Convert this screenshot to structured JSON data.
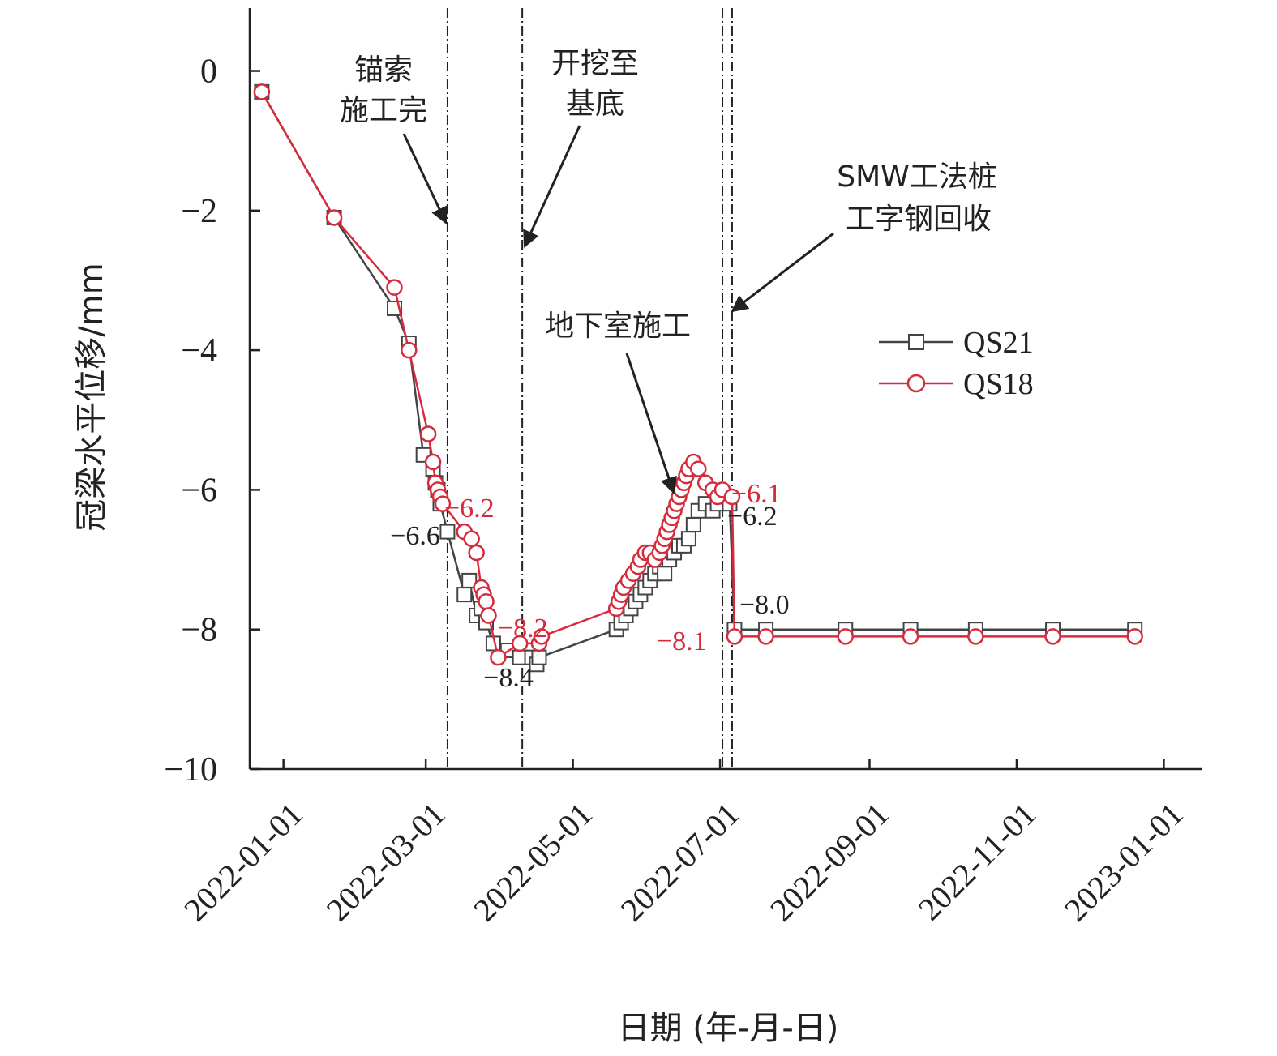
{
  "chart_data": {
    "type": "line",
    "xlabel": "日期 (年-月-日)",
    "ylabel": "冠梁水平位移/mm",
    "x_ticks": [
      "2022-01-01",
      "2022-03-01",
      "2022-05-01",
      "2022-07-01",
      "2022-09-01",
      "2022-11-01",
      "2023-01-01"
    ],
    "y_ticks": [
      "0",
      "−2",
      "−4",
      "−6",
      "−8",
      "−10"
    ],
    "xlim": [
      "2021-12-18",
      "2023-01-17"
    ],
    "ylim": [
      -10,
      0.9
    ],
    "legend_position": "right",
    "series": [
      {
        "name": "QS21",
        "color": "#444444",
        "marker": "square",
        "points": [
          [
            "2021-12-23",
            -0.3
          ],
          [
            "2022-01-22",
            -2.1
          ],
          [
            "2022-02-16",
            -3.4
          ],
          [
            "2022-02-22",
            -3.9
          ],
          [
            "2022-02-28",
            -5.5
          ],
          [
            "2022-03-04",
            -5.7
          ],
          [
            "2022-03-05",
            -5.9
          ],
          [
            "2022-03-06",
            -6.0
          ],
          [
            "2022-03-07",
            -6.2
          ],
          [
            "2022-03-10",
            -6.6
          ],
          [
            "2022-03-17",
            -7.5
          ],
          [
            "2022-03-19",
            -7.3
          ],
          [
            "2022-03-22",
            -7.8
          ],
          [
            "2022-03-24",
            -7.7
          ],
          [
            "2022-03-26",
            -7.9
          ],
          [
            "2022-03-29",
            -8.2
          ],
          [
            "2022-04-04",
            -8.3
          ],
          [
            "2022-04-09",
            -8.4
          ],
          [
            "2022-04-14",
            -8.4
          ],
          [
            "2022-04-16",
            -8.5
          ],
          [
            "2022-04-17",
            -8.4
          ],
          [
            "2022-05-19",
            -8.0
          ],
          [
            "2022-05-21",
            -7.9
          ],
          [
            "2022-05-23",
            -7.8
          ],
          [
            "2022-05-25",
            -7.7
          ],
          [
            "2022-05-27",
            -7.6
          ],
          [
            "2022-05-29",
            -7.5
          ],
          [
            "2022-05-31",
            -7.4
          ],
          [
            "2022-06-02",
            -7.3
          ],
          [
            "2022-06-04",
            -7.2
          ],
          [
            "2022-06-06",
            -7.1
          ],
          [
            "2022-06-08",
            -7.2
          ],
          [
            "2022-06-10",
            -7.0
          ],
          [
            "2022-06-12",
            -6.9
          ],
          [
            "2022-06-14",
            -6.8
          ],
          [
            "2022-06-16",
            -6.8
          ],
          [
            "2022-06-18",
            -6.7
          ],
          [
            "2022-06-20",
            -6.5
          ],
          [
            "2022-06-22",
            -6.3
          ],
          [
            "2022-06-25",
            -6.2
          ],
          [
            "2022-06-28",
            -6.3
          ],
          [
            "2022-06-30",
            -6.2
          ],
          [
            "2022-07-02",
            -6.1
          ],
          [
            "2022-07-05",
            -6.2
          ],
          [
            "2022-07-07",
            -8.0
          ],
          [
            "2022-07-20",
            -8.0
          ],
          [
            "2022-08-22",
            -8.0
          ],
          [
            "2022-09-18",
            -8.0
          ],
          [
            "2022-10-15",
            -8.0
          ],
          [
            "2022-11-16",
            -8.0
          ],
          [
            "2022-12-20",
            -8.0
          ]
        ]
      },
      {
        "name": "QS18",
        "color": "#d62b3c",
        "marker": "circle",
        "points": [
          [
            "2021-12-23",
            -0.3
          ],
          [
            "2022-01-22",
            -2.1
          ],
          [
            "2022-02-16",
            -3.1
          ],
          [
            "2022-02-22",
            -4.0
          ],
          [
            "2022-03-02",
            -5.2
          ],
          [
            "2022-03-04",
            -5.6
          ],
          [
            "2022-03-05",
            -5.9
          ],
          [
            "2022-03-06",
            -6.0
          ],
          [
            "2022-03-07",
            -6.1
          ],
          [
            "2022-03-08",
            -6.2
          ],
          [
            "2022-03-17",
            -6.6
          ],
          [
            "2022-03-20",
            -6.7
          ],
          [
            "2022-03-22",
            -6.9
          ],
          [
            "2022-03-24",
            -7.4
          ],
          [
            "2022-03-25",
            -7.5
          ],
          [
            "2022-03-26",
            -7.6
          ],
          [
            "2022-03-27",
            -7.8
          ],
          [
            "2022-03-31",
            -8.4
          ],
          [
            "2022-04-09",
            -8.2
          ],
          [
            "2022-04-17",
            -8.2
          ],
          [
            "2022-04-18",
            -8.1
          ],
          [
            "2022-05-19",
            -7.7
          ],
          [
            "2022-05-20",
            -7.6
          ],
          [
            "2022-05-21",
            -7.5
          ],
          [
            "2022-05-22",
            -7.4
          ],
          [
            "2022-05-24",
            -7.3
          ],
          [
            "2022-05-26",
            -7.2
          ],
          [
            "2022-05-28",
            -7.1
          ],
          [
            "2022-05-29",
            -7.0
          ],
          [
            "2022-05-31",
            -6.9
          ],
          [
            "2022-06-02",
            -6.9
          ],
          [
            "2022-06-04",
            -7.0
          ],
          [
            "2022-06-06",
            -6.9
          ],
          [
            "2022-06-07",
            -6.8
          ],
          [
            "2022-06-08",
            -6.7
          ],
          [
            "2022-06-09",
            -6.6
          ],
          [
            "2022-06-10",
            -6.5
          ],
          [
            "2022-06-11",
            -6.4
          ],
          [
            "2022-06-12",
            -6.3
          ],
          [
            "2022-06-13",
            -6.2
          ],
          [
            "2022-06-14",
            -6.1
          ],
          [
            "2022-06-15",
            -6.0
          ],
          [
            "2022-06-16",
            -5.9
          ],
          [
            "2022-06-17",
            -5.8
          ],
          [
            "2022-06-18",
            -5.7
          ],
          [
            "2022-06-20",
            -5.6
          ],
          [
            "2022-06-22",
            -5.7
          ],
          [
            "2022-06-25",
            -5.9
          ],
          [
            "2022-06-28",
            -6.0
          ],
          [
            "2022-06-30",
            -6.1
          ],
          [
            "2022-07-02",
            -6.0
          ],
          [
            "2022-07-06",
            -6.1
          ],
          [
            "2022-07-07",
            -8.1
          ],
          [
            "2022-07-20",
            -8.1
          ],
          [
            "2022-08-22",
            -8.1
          ],
          [
            "2022-09-18",
            -8.1
          ],
          [
            "2022-10-15",
            -8.1
          ],
          [
            "2022-11-16",
            -8.1
          ],
          [
            "2022-12-20",
            -8.1
          ]
        ]
      }
    ],
    "event_lines": [
      {
        "date": "2022-03-10",
        "label": [
          "锚索",
          "施工完"
        ]
      },
      {
        "date": "2022-04-10",
        "label": [
          "开挖至",
          "基底"
        ]
      },
      {
        "date": "2022-07-02",
        "label": []
      },
      {
        "date": "2022-07-06",
        "label": [
          "SMW工法桩",
          "工字钢回收"
        ]
      }
    ],
    "annotations": [
      {
        "text": "地下室施工",
        "color": "#222222"
      },
      {
        "text": "−6.6",
        "series": "QS21",
        "color": "#222222"
      },
      {
        "text": "−8.4",
        "series": "QS21",
        "color": "#222222"
      },
      {
        "text": "−6.2",
        "series": "QS21",
        "color": "#222222"
      },
      {
        "text": "−8.0",
        "series": "QS21",
        "color": "#222222"
      },
      {
        "text": "−6.2",
        "series": "QS18",
        "color": "#d62b3c"
      },
      {
        "text": "−8.2",
        "series": "QS18",
        "color": "#d62b3c"
      },
      {
        "text": "−6.1",
        "series": "QS18",
        "color": "#d62b3c"
      },
      {
        "text": "−8.1",
        "series": "QS18",
        "color": "#d62b3c"
      }
    ]
  }
}
